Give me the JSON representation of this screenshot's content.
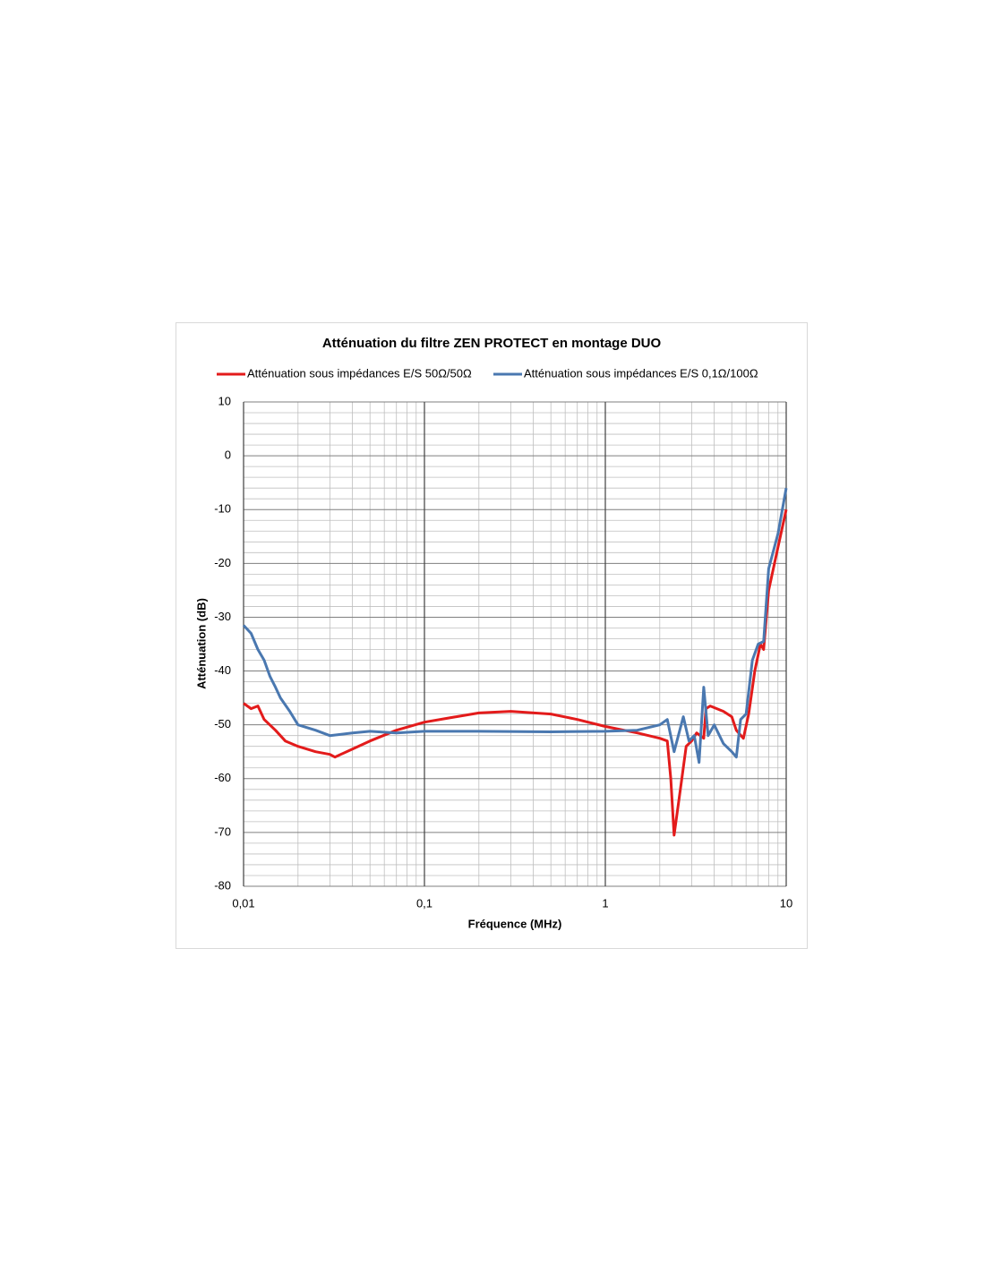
{
  "chart_data": {
    "type": "line",
    "title": "Atténuation du filtre ZEN PROTECT en montage DUO",
    "x_label": "Fréquence (MHz)",
    "y_label": "Atténuation (dB)",
    "x_scale": "log",
    "grid": true,
    "minor_grid": true,
    "legend": "top",
    "xlim": [
      0.01,
      10
    ],
    "xticks": [
      {
        "value": 0.01,
        "label": "0,01"
      },
      {
        "value": 0.1,
        "label": "0,1"
      },
      {
        "value": 1,
        "label": "1"
      },
      {
        "value": 10,
        "label": "10"
      }
    ],
    "ylim": [
      -80,
      10
    ],
    "yticks": [
      -80,
      -70,
      -60,
      -50,
      -40,
      -30,
      -20,
      -10,
      0,
      10
    ],
    "series": [
      {
        "name": "Atténuation sous impédances E/S 50Ω/50Ω",
        "color": "#e31b1b",
        "x": [
          0.01,
          0.011,
          0.012,
          0.013,
          0.015,
          0.017,
          0.02,
          0.025,
          0.03,
          0.032,
          0.04,
          0.05,
          0.07,
          0.1,
          0.15,
          0.2,
          0.3,
          0.5,
          0.7,
          1,
          1.5,
          2,
          2.2,
          2.3,
          2.4,
          2.6,
          2.8,
          3,
          3.2,
          3.5,
          3.6,
          3.8,
          4.5,
          5,
          5.3,
          5.8,
          6.2,
          6.7,
          7.2,
          7.5,
          8,
          9,
          10
        ],
        "values": [
          -46,
          -47,
          -46.5,
          -49,
          -51,
          -53,
          -54,
          -55,
          -55.5,
          -56,
          -54.5,
          -53,
          -51,
          -49.5,
          -48.5,
          -47.8,
          -47.5,
          -48,
          -49,
          -50.3,
          -51.5,
          -52.5,
          -53,
          -60,
          -70.5,
          -62,
          -54,
          -53,
          -51.5,
          -52.5,
          -47,
          -46.5,
          -47.5,
          -48.5,
          -51,
          -52.5,
          -48,
          -40,
          -35,
          -36,
          -25,
          -17,
          -10
        ]
      },
      {
        "name": "Atténuation sous impédances E/S 0,1Ω/100Ω",
        "color": "#4a78b0",
        "x": [
          0.01,
          0.011,
          0.012,
          0.013,
          0.014,
          0.015,
          0.016,
          0.018,
          0.02,
          0.025,
          0.03,
          0.04,
          0.05,
          0.07,
          0.1,
          0.2,
          0.5,
          1,
          1.5,
          2,
          2.2,
          2.4,
          2.7,
          2.9,
          3.1,
          3.3,
          3.5,
          3.7,
          4,
          4.5,
          5,
          5.3,
          5.6,
          6,
          6.5,
          7,
          7.5,
          8,
          9,
          10
        ],
        "values": [
          -31.5,
          -33,
          -36,
          -38,
          -41,
          -43,
          -45,
          -47.5,
          -50,
          -51,
          -52,
          -51.5,
          -51.2,
          -51.5,
          -51.2,
          -51.2,
          -51.3,
          -51.2,
          -51,
          -50,
          -49,
          -55,
          -48.5,
          -53,
          -52,
          -57,
          -43,
          -52,
          -50,
          -53.5,
          -55,
          -56,
          -49,
          -48,
          -38,
          -35,
          -34.5,
          -21,
          -14.5,
          -6
        ]
      }
    ]
  }
}
